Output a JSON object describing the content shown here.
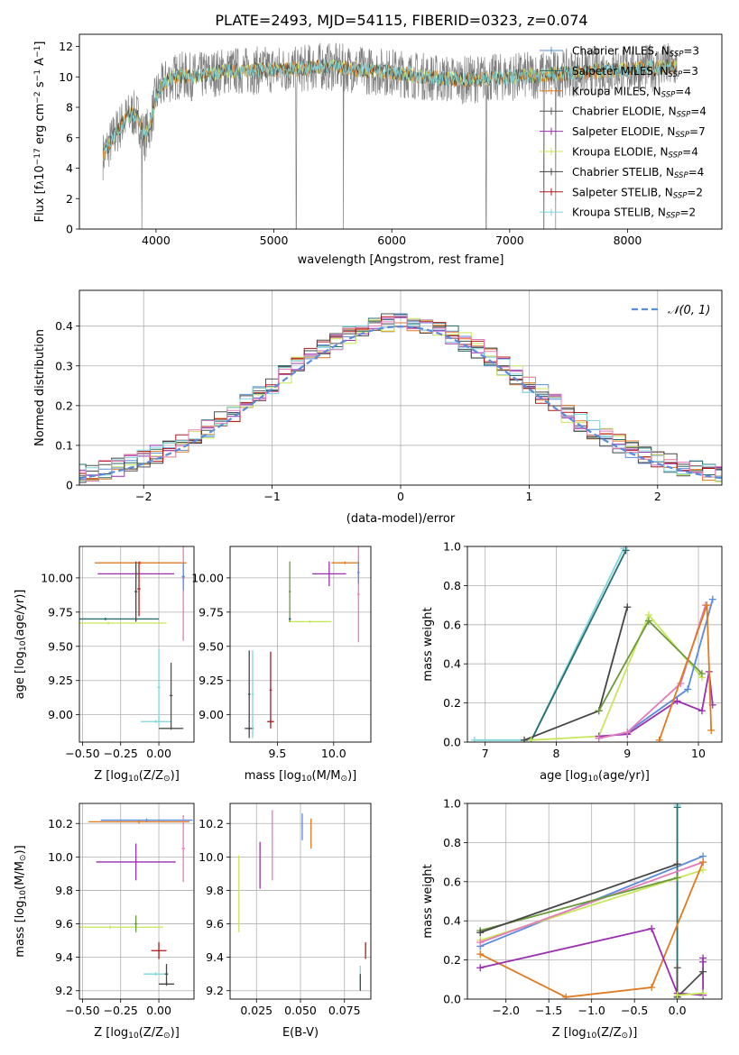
{
  "figure_title": "PLATE=2493, MJD=54115, FIBERID=0323, z=0.074",
  "colors": {
    "Chabrier MILES": "#5b8bdb",
    "Salpeter MILES": "#2a6e6e",
    "Kroupa MILES": "#e07a20",
    "Chabrier ELODIE": "#505050",
    "Salpeter ELODIE": "#9a2fb0",
    "Kroupa ELODIE": "#c8e65a",
    "Chabrier STELIB": "#454545",
    "Salpeter STELIB": "#b01818",
    "Kroupa STELIB": "#7dd6dc",
    "pink": "#e67ab8",
    "green": "#6a9a3a",
    "normal_curve": "#5b8bdb",
    "data_gray": "#808080"
  },
  "chart_data": [
    {
      "id": "spectrum",
      "type": "line",
      "xlabel": "wavelength [Angstrom, rest frame]",
      "ylabel_parts": [
        "Flux [f",
        "λ",
        "10",
        "−17",
        " erg cm",
        "−2",
        " s",
        "−1",
        " A",
        "−1",
        "]"
      ],
      "xlim": [
        3350,
        8800
      ],
      "ylim": [
        0,
        12.8
      ],
      "xticks": [
        4000,
        5000,
        6000,
        7000,
        8000
      ],
      "yticks": [
        0,
        2,
        4,
        6,
        8,
        10,
        12
      ],
      "grid": false,
      "legend_position": "top-right",
      "legend": [
        {
          "pre": "Chabrier MILES, N",
          "sub": "SSP",
          "post": "=3",
          "key": "Chabrier MILES"
        },
        {
          "pre": "Salpeter MILES, N",
          "sub": "SSP",
          "post": "=3",
          "key": "Salpeter MILES"
        },
        {
          "pre": "Kroupa MILES, N",
          "sub": "SSP",
          "post": "=4",
          "key": "Kroupa MILES"
        },
        {
          "pre": "Chabrier ELODIE, N",
          "sub": "SSP",
          "post": "=4",
          "key": "Chabrier ELODIE"
        },
        {
          "pre": "Salpeter ELODIE, N",
          "sub": "SSP",
          "post": "=7",
          "key": "Salpeter ELODIE"
        },
        {
          "pre": "Kroupa ELODIE, N",
          "sub": "SSP",
          "post": "=4",
          "key": "Kroupa ELODIE"
        },
        {
          "pre": "Chabrier STELIB, N",
          "sub": "SSP",
          "post": "=4",
          "key": "Chabrier STELIB"
        },
        {
          "pre": "Salpeter STELIB, N",
          "sub": "SSP",
          "post": "=2",
          "key": "Salpeter STELIB"
        },
        {
          "pre": "Kroupa STELIB, N",
          "sub": "SSP",
          "post": "=2",
          "key": "Kroupa STELIB"
        }
      ],
      "data_envelope": {
        "x": [
          3550,
          3600,
          3650,
          3700,
          3750,
          3800,
          3850,
          3900,
          3950,
          4000,
          4100,
          4200,
          4300,
          4400,
          4600,
          4800,
          5000,
          5200,
          5400,
          5600,
          5800,
          6000,
          6200,
          6400,
          6600,
          6800,
          7000,
          7200,
          7400,
          7600,
          7800,
          8000,
          8200,
          8400
        ],
        "y": [
          4.8,
          5.5,
          6.2,
          6.8,
          7.3,
          7.6,
          7.3,
          6.0,
          6.8,
          8.8,
          9.8,
          10.1,
          10.0,
          10.1,
          10.4,
          10.4,
          10.5,
          10.5,
          10.7,
          10.6,
          10.4,
          10.3,
          10.1,
          9.9,
          9.8,
          9.9,
          10.0,
          10.1,
          10.2,
          10.3,
          10.4,
          10.5,
          10.6,
          10.7
        ]
      },
      "absorption_dips": [
        {
          "x": 3880,
          "y": 0
        },
        {
          "x": 5190,
          "y": 0
        },
        {
          "x": 5590,
          "y": 0
        },
        {
          "x": 6800,
          "y": 0
        },
        {
          "x": 7290,
          "y": 0
        },
        {
          "x": 7390,
          "y": 0
        }
      ]
    },
    {
      "id": "residuals",
      "type": "step",
      "xlabel": "(data-model)/error",
      "ylabel": "Normed distribution",
      "xlim": [
        -2.5,
        2.5
      ],
      "ylim": [
        0,
        0.49
      ],
      "xticks": [
        -2,
        -1,
        0,
        1,
        2
      ],
      "yticks": [
        0.0,
        0.1,
        0.2,
        0.3,
        0.4
      ],
      "xtick_labels": [
        "−2",
        "−1",
        "0",
        "1",
        "2"
      ],
      "grid": true,
      "legend_position": "top-right",
      "legend_label": "𝒩(0, 1)",
      "normal_mean": 0,
      "normal_sigma": 1,
      "bin_width": 0.1
    },
    {
      "id": "age_vs_Z",
      "type": "errorbar",
      "xlabel_parts": [
        "Z [log",
        "10",
        "(Z/Z",
        "⊙",
        ")]"
      ],
      "ylabel_parts": [
        "age  [log",
        "10",
        "(age/yr)]"
      ],
      "xlim": [
        -0.52,
        0.23
      ],
      "ylim": [
        8.8,
        10.23
      ],
      "xticks": [
        -0.5,
        -0.25,
        0.0
      ],
      "xtick_labels": [
        "−0.50",
        "−0.25",
        "0.00"
      ],
      "yticks": [
        9.0,
        9.25,
        9.5,
        9.75,
        10.0
      ],
      "ytick_labels": [
        "9.00",
        "9.25",
        "9.50",
        "9.75",
        "10.00"
      ],
      "grid": true,
      "points": [
        {
          "c": "Kroupa MILES",
          "x": -0.12,
          "y": 10.11,
          "xerr": 0.3,
          "yerr": 0.01
        },
        {
          "c": "Salpeter ELODIE",
          "x": -0.15,
          "y": 10.03,
          "xerr": 0.25,
          "yerr": 0.02
        },
        {
          "c": "pink",
          "x": 0.16,
          "y": 10.0,
          "xerr": 0.01,
          "yerr": 0.46
        },
        {
          "c": "Chabrier MILES",
          "x": 0.16,
          "y": 10.01,
          "xerr": 0.01,
          "yerr": 0.1
        },
        {
          "c": "Salpeter MILES",
          "x": -0.35,
          "y": 9.7,
          "xerr": 0.35,
          "yerr": 0.01
        },
        {
          "c": "Kroupa ELODIE",
          "x": -0.33,
          "y": 9.67,
          "xerr": 0.38,
          "yerr": 0.01
        },
        {
          "c": "Chabrier STELIB",
          "x": -0.15,
          "y": 9.9,
          "xerr": 0.01,
          "yerr": 0.22
        },
        {
          "c": "Salpeter STELIB",
          "x": -0.13,
          "y": 9.92,
          "xerr": 0.01,
          "yerr": 0.2
        },
        {
          "c": "Kroupa STELIB",
          "x": 0.0,
          "y": 9.2,
          "xerr": 0.01,
          "yerr": 0.28
        },
        {
          "c": "Kroupa STELIB",
          "x": -0.02,
          "y": 8.95,
          "xerr": 0.1,
          "yerr": 0.01
        },
        {
          "c": "Chabrier ELODIE",
          "x": 0.08,
          "y": 9.14,
          "xerr": 0.01,
          "yerr": 0.24
        },
        {
          "c": "Chabrier ELODIE",
          "x": 0.08,
          "y": 8.9,
          "xerr": 0.08,
          "yerr": 0.01
        }
      ]
    },
    {
      "id": "age_vs_mass",
      "type": "errorbar",
      "xlabel_parts": [
        "mass [log",
        "10",
        "(M/M",
        "⊙",
        ")]"
      ],
      "xlim": [
        9.08,
        10.33
      ],
      "ylim": [
        8.8,
        10.23
      ],
      "xticks": [
        9.5,
        10.0
      ],
      "xtick_labels": [
        "9.5",
        "10.0"
      ],
      "yticks": [
        9.0,
        9.25,
        9.5,
        9.75,
        10.0
      ],
      "ytick_labels": [
        "9.00",
        "9.25",
        "9.50",
        "9.75",
        "10.00"
      ],
      "grid": true,
      "points": [
        {
          "c": "Kroupa MILES",
          "x": 10.1,
          "y": 10.11,
          "xerr": 0.12,
          "yerr": 0.01
        },
        {
          "c": "Salpeter ELODIE",
          "x": 9.96,
          "y": 10.03,
          "xerr": 0.15,
          "yerr": 0.09
        },
        {
          "c": "pink",
          "x": 10.22,
          "y": 9.88,
          "xerr": 0.01,
          "yerr": 0.35
        },
        {
          "c": "Chabrier MILES",
          "x": 10.22,
          "y": 10.04,
          "xerr": 0.01,
          "yerr": 0.08
        },
        {
          "c": "Kroupa ELODIE",
          "x": 9.79,
          "y": 9.68,
          "xerr": 0.19,
          "yerr": 0.01
        },
        {
          "c": "green",
          "x": 9.61,
          "y": 9.9,
          "xerr": 0.01,
          "yerr": 0.22
        },
        {
          "c": "Salpeter MILES",
          "x": 9.61,
          "y": 9.7,
          "xerr": 0.01,
          "yerr": 0.01
        },
        {
          "c": "Chabrier STELIB",
          "x": 9.25,
          "y": 9.15,
          "xerr": 0.01,
          "yerr": 0.32
        },
        {
          "c": "Chabrier STELIB",
          "x": 9.25,
          "y": 8.9,
          "xerr": 0.04,
          "yerr": 0.01
        },
        {
          "c": "Kroupa STELIB",
          "x": 9.28,
          "y": 9.15,
          "xerr": 0.01,
          "yerr": 0.32
        },
        {
          "c": "Salpeter STELIB",
          "x": 9.44,
          "y": 9.18,
          "xerr": 0.01,
          "yerr": 0.28
        },
        {
          "c": "Salpeter STELIB",
          "x": 9.44,
          "y": 8.95,
          "xerr": 0.03,
          "yerr": 0.01
        }
      ]
    },
    {
      "id": "mass_weight_vs_age",
      "type": "line",
      "xlabel_parts": [
        "age  [log",
        "10",
        "(age/yr)]"
      ],
      "ylabel": "mass weight",
      "xlim": [
        6.75,
        10.33
      ],
      "ylim": [
        0.0,
        1.0
      ],
      "xticks": [
        7,
        8,
        9,
        10
      ],
      "yticks": [
        0.0,
        0.2,
        0.4,
        0.6,
        0.8,
        1.0
      ],
      "ytick_labels": [
        "0.0",
        "0.2",
        "0.4",
        "0.6",
        "0.8",
        "1.0"
      ],
      "grid": true,
      "series": [
        {
          "c": "Kroupa STELIB",
          "x": [
            6.85,
            7.65,
            8.95
          ],
          "y": [
            0.01,
            0.01,
            0.99
          ]
        },
        {
          "c": "Salpeter MILES",
          "x": [
            7.65,
            8.98
          ],
          "y": [
            0.01,
            0.98
          ]
        },
        {
          "c": "Chabrier STELIB",
          "x": [
            7.55,
            8.6,
            9.0
          ],
          "y": [
            0.01,
            0.16,
            0.69
          ]
        },
        {
          "c": "Kroupa ELODIE",
          "x": [
            7.65,
            8.6,
            9.3,
            10.05
          ],
          "y": [
            0.01,
            0.03,
            0.65,
            0.33
          ]
        },
        {
          "c": "green",
          "x": [
            8.6,
            9.3,
            10.05
          ],
          "y": [
            0.16,
            0.62,
            0.35
          ]
        },
        {
          "c": "Salpeter ELODIE",
          "x": [
            8.6,
            9.0,
            9.7,
            10.05,
            10.15,
            10.2
          ],
          "y": [
            0.03,
            0.04,
            0.21,
            0.16,
            0.36,
            0.19
          ]
        },
        {
          "c": "Chabrier MILES",
          "x": [
            8.6,
            9.0,
            9.85,
            10.2
          ],
          "y": [
            0.02,
            0.05,
            0.27,
            0.73
          ]
        },
        {
          "c": "pink",
          "x": [
            8.6,
            9.0,
            9.75,
            10.1
          ],
          "y": [
            0.02,
            0.05,
            0.3,
            0.7
          ]
        },
        {
          "c": "Kroupa MILES",
          "x": [
            9.45,
            10.12,
            10.18
          ],
          "y": [
            0.01,
            0.7,
            0.06
          ]
        }
      ]
    },
    {
      "id": "mass_vs_Z",
      "type": "errorbar",
      "xlabel_parts": [
        "Z [log",
        "10",
        "(Z/Z",
        "⊙",
        ")]"
      ],
      "ylabel_parts": [
        "mass [log",
        "10",
        "(M/M",
        "⊙",
        ")]"
      ],
      "xlim": [
        -0.52,
        0.23
      ],
      "ylim": [
        9.15,
        10.32
      ],
      "xticks": [
        -0.5,
        -0.25,
        0.0
      ],
      "xtick_labels": [
        "−0.50",
        "−0.25",
        "0.00"
      ],
      "yticks": [
        9.2,
        9.4,
        9.6,
        9.8,
        10.0,
        10.2
      ],
      "ytick_labels": [
        "9.2",
        "9.4",
        "9.6",
        "9.8",
        "10.0",
        "10.2"
      ],
      "grid": true,
      "points": [
        {
          "c": "Chabrier MILES",
          "x": -0.08,
          "y": 10.22,
          "xerr": 0.3,
          "yerr": 0.01
        },
        {
          "c": "Kroupa MILES",
          "x": -0.13,
          "y": 10.21,
          "xerr": 0.33,
          "yerr": 0.01
        },
        {
          "c": "pink",
          "x": 0.16,
          "y": 10.05,
          "xerr": 0.01,
          "yerr": 0.2
        },
        {
          "c": "Salpeter ELODIE",
          "x": -0.15,
          "y": 9.97,
          "xerr": 0.26,
          "yerr": 0.11
        },
        {
          "c": "Kroupa ELODIE",
          "x": -0.32,
          "y": 9.58,
          "xerr": 0.35,
          "yerr": 0.01
        },
        {
          "c": "green",
          "x": -0.15,
          "y": 9.6,
          "xerr": 0.01,
          "yerr": 0.05
        },
        {
          "c": "Salpeter STELIB",
          "x": 0.0,
          "y": 9.44,
          "xerr": 0.05,
          "yerr": 0.05
        },
        {
          "c": "Kroupa STELIB",
          "x": -0.02,
          "y": 9.3,
          "xerr": 0.08,
          "yerr": 0.01
        },
        {
          "c": "Chabrier STELIB",
          "x": 0.05,
          "y": 9.24,
          "xerr": 0.05,
          "yerr": 0.01
        },
        {
          "c": "Chabrier STELIB",
          "x": 0.05,
          "y": 9.3,
          "xerr": 0.01,
          "yerr": 0.06
        }
      ]
    },
    {
      "id": "mass_vs_ebv",
      "type": "errorbar",
      "xlabel": "E(B-V)",
      "xlim": [
        0.01,
        0.09
      ],
      "ylim": [
        9.15,
        10.32
      ],
      "xticks": [
        0.025,
        0.05,
        0.075
      ],
      "xtick_labels": [
        "0.025",
        "0.050",
        "0.075"
      ],
      "yticks": [
        9.2,
        9.4,
        9.6,
        9.8,
        10.0,
        10.2
      ],
      "ytick_labels": [
        "9.2",
        "9.4",
        "9.6",
        "9.8",
        "10.0",
        "10.2"
      ],
      "grid": true,
      "points": [
        {
          "c": "Chabrier MILES",
          "x": 0.051,
          "y": 10.18,
          "xerr": 0,
          "yerr": 0.08
        },
        {
          "c": "Kroupa MILES",
          "x": 0.056,
          "y": 10.14,
          "xerr": 0,
          "yerr": 0.09
        },
        {
          "c": "pink",
          "x": 0.034,
          "y": 10.07,
          "xerr": 0,
          "yerr": 0.21
        },
        {
          "c": "Salpeter ELODIE",
          "x": 0.027,
          "y": 9.95,
          "xerr": 0,
          "yerr": 0.14
        },
        {
          "c": "Kroupa ELODIE",
          "x": 0.015,
          "y": 9.78,
          "xerr": 0,
          "yerr": 0.23
        },
        {
          "c": "Salpeter STELIB",
          "x": 0.087,
          "y": 9.44,
          "xerr": 0,
          "yerr": 0.05
        },
        {
          "c": "Kroupa STELIB",
          "x": 0.084,
          "y": 9.28,
          "xerr": 0,
          "yerr": 0.07
        },
        {
          "c": "Chabrier STELIB",
          "x": 0.084,
          "y": 9.25,
          "xerr": 0,
          "yerr": 0.05
        }
      ]
    },
    {
      "id": "mass_weight_vs_Z",
      "type": "line",
      "xlabel_parts": [
        "Z [log",
        "10",
        "(Z/Z",
        "⊙",
        ")]"
      ],
      "ylabel": "mass weight",
      "xlim": [
        -2.45,
        0.52
      ],
      "ylim": [
        0.0,
        1.0
      ],
      "xticks": [
        -2.0,
        -1.5,
        -1.0,
        -0.5,
        0.0
      ],
      "xtick_labels": [
        "−2.0",
        "−1.5",
        "−1.0",
        "−0.5",
        "0.0"
      ],
      "yticks": [
        0.0,
        0.2,
        0.4,
        0.6,
        0.8,
        1.0
      ],
      "ytick_labels": [
        "0.0",
        "0.2",
        "0.4",
        "0.6",
        "0.8",
        "1.0"
      ],
      "grid": true,
      "series": [
        {
          "c": "Kroupa STELIB",
          "x": [
            0.0,
            0.0
          ],
          "y": [
            0.01,
            0.99
          ]
        },
        {
          "c": "Salpeter MILES",
          "x": [
            0.0,
            0.0
          ],
          "y": [
            0.01,
            0.98
          ]
        },
        {
          "c": "Chabrier MILES",
          "x": [
            -2.3,
            0.3
          ],
          "y": [
            0.27,
            0.73
          ]
        },
        {
          "c": "Kroupa ELODIE",
          "x": [
            -2.3,
            0.3
          ],
          "y": [
            0.3,
            0.66
          ]
        },
        {
          "c": "pink",
          "x": [
            -2.3,
            0.3
          ],
          "y": [
            0.29,
            0.7
          ]
        },
        {
          "c": "green",
          "x": [
            -2.3,
            0.0
          ],
          "y": [
            0.35,
            0.62
          ]
        },
        {
          "c": "Chabrier STELIB",
          "x": [
            -2.3,
            0.0
          ],
          "y": [
            0.34,
            0.69
          ]
        },
        {
          "c": "Kroupa MILES",
          "x": [
            -2.3,
            -1.3,
            -0.3,
            0.3
          ],
          "y": [
            0.23,
            0.01,
            0.06,
            0.7
          ]
        },
        {
          "c": "Salpeter ELODIE",
          "x": [
            -2.3,
            -0.3,
            0.0,
            0.3,
            0.3,
            0.3
          ],
          "y": [
            0.16,
            0.36,
            0.03,
            0.02,
            0.21,
            0.19
          ]
        },
        {
          "c": "Chabrier ELODIE",
          "x": [
            0.0,
            0.0,
            0.3
          ],
          "y": [
            0.16,
            0.01,
            0.14
          ]
        },
        {
          "c": "Kroupa ELODIE",
          "x": [
            0.0,
            0.3
          ],
          "y": [
            0.02,
            0.03
          ]
        }
      ]
    }
  ]
}
